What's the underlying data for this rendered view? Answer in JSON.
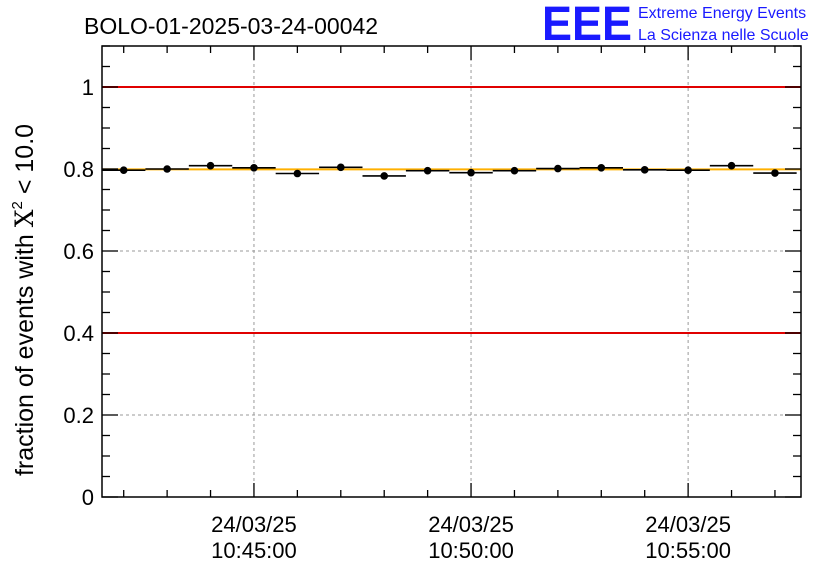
{
  "header": {
    "title": "BOLO-01-2025-03-24-00042",
    "logo_mark": "EEE",
    "logo_line1": "Extreme Energy Events",
    "logo_line2": "La Scienza nelle Scuole"
  },
  "chart_data": {
    "type": "scatter",
    "title": "BOLO-01-2025-03-24-00042",
    "ylabel": "fraction of events with",
    "ylabel_symbol": "X",
    "ylabel_exponent": "2",
    "ylabel_suffix": " < 10.0",
    "xlabel": "",
    "ylim": [
      0,
      1.1
    ],
    "xlim_minutes": [
      41.5,
      57.6
    ],
    "grid": true,
    "x_ticks": [
      {
        "minute": 45,
        "date": "24/03/25",
        "time": "10:45:00"
      },
      {
        "minute": 50,
        "date": "24/03/25",
        "time": "10:50:00"
      },
      {
        "minute": 55,
        "date": "24/03/25",
        "time": "10:55:00"
      }
    ],
    "y_ticks": [
      0,
      0.2,
      0.4,
      0.6,
      0.8,
      1
    ],
    "y_tick_labels": [
      "0",
      "0.2",
      "0.4",
      "0.6",
      "0.8",
      "1"
    ],
    "reference_lines": [
      {
        "y": 1.0,
        "color": "#e00000"
      },
      {
        "y": 0.4,
        "color": "#e00000"
      },
      {
        "y": 0.799,
        "color": "#ffb000"
      }
    ],
    "series": [
      {
        "x_minutes": [
          42.0,
          43.0,
          44.0,
          45.0,
          46.0,
          47.0,
          48.0,
          49.0,
          50.0,
          51.0,
          52.0,
          53.0,
          54.0,
          55.0,
          56.0,
          57.0
        ],
        "x_halfwidth_minutes": 0.5,
        "y": [
          0.797,
          0.8,
          0.808,
          0.803,
          0.789,
          0.804,
          0.783,
          0.796,
          0.791,
          0.796,
          0.801,
          0.803,
          0.798,
          0.797,
          0.808,
          0.79
        ],
        "color": "#000000"
      }
    ]
  }
}
